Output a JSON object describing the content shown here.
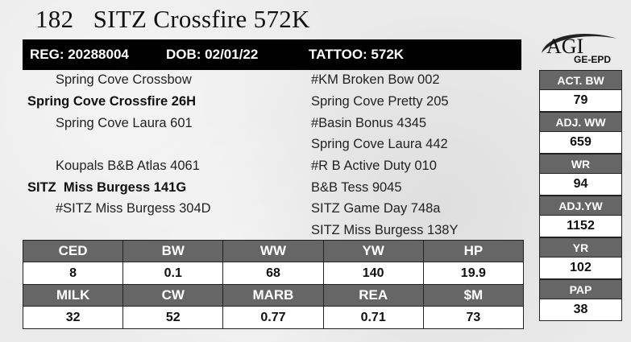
{
  "header": {
    "lot": "182",
    "name": "SITZ Crossfire 572K",
    "reg": "REG: 20288004",
    "dob": "DOB: 02/01/22",
    "tattoo": "TATTOO: 572K"
  },
  "logo": {
    "top": "AGI",
    "bottom": "GE-EPD"
  },
  "pedigree": {
    "sire_sire": "Spring Cove Crossbow",
    "sire": "Spring Cove Crossfire 26H",
    "sire_dam": "Spring Cove Laura 601",
    "dam_sire": "Koupals B&B Atlas 4061",
    "dam": "SITZ  Miss Burgess 141G",
    "dam_dam": "#SITZ Miss Burgess 304D",
    "right": [
      "#KM Broken Bow 002",
      "Spring Cove Pretty 205",
      "#Basin Bonus 4345",
      "Spring Cove Laura 442",
      "#R B Active Duty 010",
      "B&B Tess 9045",
      "SITZ Game Day 748a",
      "SITZ Miss Burgess 138Y"
    ]
  },
  "side": [
    {
      "label": "ACT. BW",
      "value": "79"
    },
    {
      "label": "ADJ. WW",
      "value": "659"
    },
    {
      "label": "WR",
      "value": "94"
    },
    {
      "label": "ADJ.YW",
      "value": "1152"
    },
    {
      "label": "YR",
      "value": "102"
    },
    {
      "label": "PAP",
      "value": "38"
    }
  ],
  "epds": {
    "row1_labels": [
      "CED",
      "BW",
      "WW",
      "YW",
      "HP"
    ],
    "row1_values": [
      "8",
      "0.1",
      "68",
      "140",
      "19.9"
    ],
    "row2_labels": [
      "MILK",
      "CW",
      "MARB",
      "REA",
      "$M"
    ],
    "row2_values": [
      "32",
      "52",
      "0.77",
      "0.71",
      "73"
    ]
  }
}
